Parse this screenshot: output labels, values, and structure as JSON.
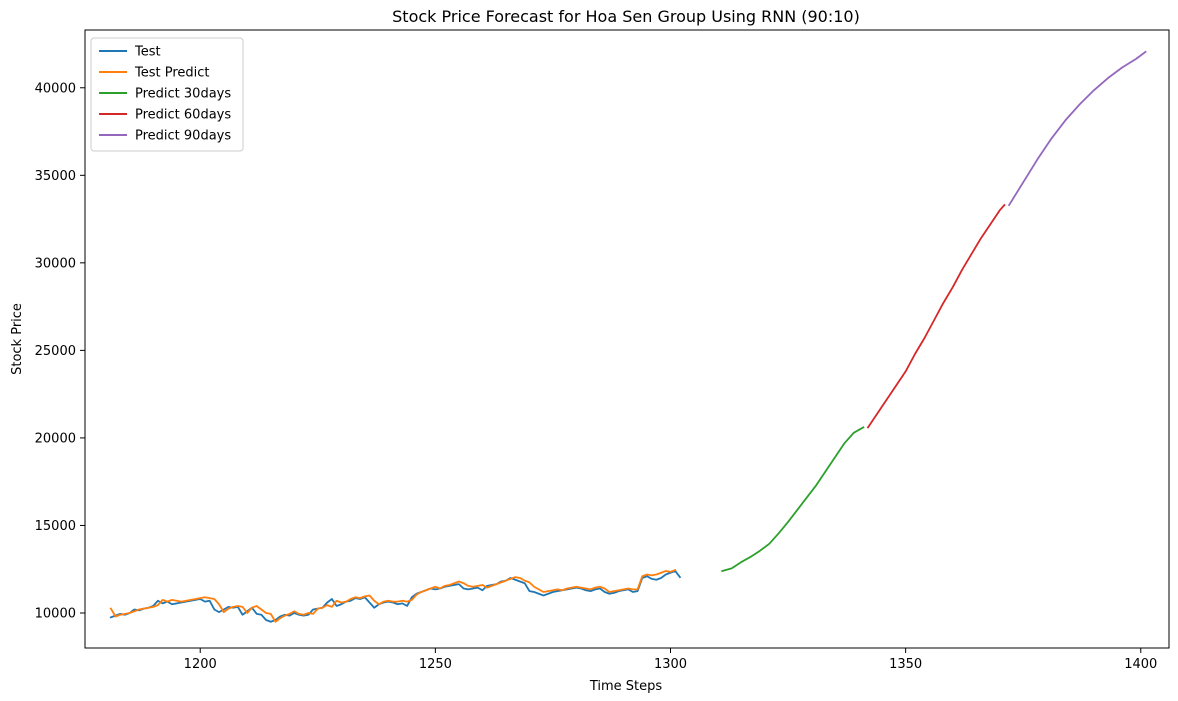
{
  "chart_data": {
    "type": "line",
    "title": "Stock Price Forecast for Hoa Sen Group Using RNN (90:10)",
    "xlabel": "Time Steps",
    "ylabel": "Stock Price",
    "xlim": [
      1175.5,
      1406
    ],
    "ylim": [
      8000,
      43300
    ],
    "xticks": [
      1200,
      1250,
      1300,
      1350,
      1400
    ],
    "yticks": [
      10000,
      15000,
      20000,
      25000,
      30000,
      35000,
      40000
    ],
    "legend_position": "top-left",
    "grid": false,
    "series": [
      {
        "name": "Test",
        "color": "#1f77b4",
        "x_start": 1181,
        "values": [
          9750,
          9850,
          9950,
          9900,
          10000,
          10200,
          10150,
          10250,
          10300,
          10400,
          10700,
          10550,
          10650,
          10500,
          10550,
          10600,
          10650,
          10700,
          10750,
          10800,
          10650,
          10700,
          10200,
          10050,
          10200,
          10350,
          10300,
          10350,
          9900,
          10100,
          10300,
          9950,
          9900,
          9600,
          9500,
          9600,
          9800,
          9900,
          9850,
          10000,
          9900,
          9850,
          9900,
          10200,
          10250,
          10300,
          10600,
          10800,
          10400,
          10500,
          10650,
          10700,
          10850,
          10800,
          10900,
          10600,
          10300,
          10500,
          10600,
          10650,
          10600,
          10500,
          10550,
          10400,
          10900,
          11100,
          11200,
          11300,
          11400,
          11350,
          11400,
          11500,
          11550,
          11600,
          11650,
          11400,
          11350,
          11400,
          11450,
          11300,
          11550,
          11600,
          11650,
          11800,
          11850,
          12000,
          11900,
          11800,
          11700,
          11250,
          11200,
          11100,
          11000,
          11100,
          11200,
          11250,
          11300,
          11350,
          11400,
          11450,
          11400,
          11300,
          11250,
          11350,
          11400,
          11200,
          11100,
          11150,
          11250,
          11300,
          11350,
          11200,
          11250,
          12000,
          12100,
          11950,
          11900,
          12000,
          12200,
          12300,
          12400,
          12050
        ],
        "note_end_x": 1312
      },
      {
        "name": "Test Predict",
        "color": "#ff7f0e",
        "x_start": 1181,
        "values": [
          10250,
          9800,
          9900,
          9950,
          10000,
          10100,
          10200,
          10250,
          10300,
          10350,
          10450,
          10750,
          10650,
          10750,
          10700,
          10650,
          10700,
          10750,
          10800,
          10850,
          10900,
          10850,
          10800,
          10500,
          10050,
          10250,
          10350,
          10400,
          10350,
          10000,
          10300,
          10400,
          10200,
          10000,
          9950,
          9500,
          9700,
          9850,
          9950,
          10100,
          9950,
          9900,
          10000,
          9950,
          10250,
          10300,
          10450,
          10350,
          10700,
          10600,
          10650,
          10800,
          10900,
          10850,
          10950,
          11000,
          10700,
          10500,
          10650,
          10700,
          10650,
          10650,
          10700,
          10650,
          10750,
          11050,
          11200,
          11300,
          11400,
          11500,
          11400,
          11550,
          11600,
          11700,
          11800,
          11700,
          11550,
          11500,
          11550,
          11600,
          11450,
          11550,
          11650,
          11750,
          11850,
          11950,
          12050,
          12000,
          11850,
          11750,
          11500,
          11350,
          11200,
          11250,
          11300,
          11350,
          11300,
          11400,
          11450,
          11500,
          11450,
          11400,
          11350,
          11450,
          11500,
          11400,
          11200,
          11250,
          11300,
          11350,
          11400,
          11350,
          11350,
          12100,
          12200,
          12150,
          12200,
          12300,
          12400,
          12350,
          12450
        ],
        "note_end_x": 1311
      },
      {
        "name": "Predict 30days",
        "color": "#2ca02c",
        "points": [
          [
            1311,
            12400
          ],
          [
            1313,
            12550
          ],
          [
            1315,
            12900
          ],
          [
            1317,
            13200
          ],
          [
            1319,
            13550
          ],
          [
            1321,
            13950
          ],
          [
            1323,
            14550
          ],
          [
            1325,
            15200
          ],
          [
            1327,
            15900
          ],
          [
            1329,
            16600
          ],
          [
            1331,
            17300
          ],
          [
            1333,
            18100
          ],
          [
            1335,
            18900
          ],
          [
            1337,
            19700
          ],
          [
            1339,
            20300
          ],
          [
            1341,
            20600
          ]
        ]
      },
      {
        "name": "Predict 60days",
        "color": "#d62728",
        "points": [
          [
            1342,
            20600
          ],
          [
            1344,
            21400
          ],
          [
            1346,
            22200
          ],
          [
            1348,
            23000
          ],
          [
            1350,
            23800
          ],
          [
            1352,
            24800
          ],
          [
            1354,
            25700
          ],
          [
            1356,
            26700
          ],
          [
            1358,
            27700
          ],
          [
            1360,
            28600
          ],
          [
            1362,
            29600
          ],
          [
            1364,
            30500
          ],
          [
            1366,
            31400
          ],
          [
            1368,
            32200
          ],
          [
            1370,
            33000
          ],
          [
            1371,
            33300
          ]
        ]
      },
      {
        "name": "Predict 90days",
        "color": "#9467bd",
        "points": [
          [
            1372,
            33300
          ],
          [
            1375,
            34600
          ],
          [
            1378,
            35900
          ],
          [
            1381,
            37100
          ],
          [
            1384,
            38150
          ],
          [
            1387,
            39050
          ],
          [
            1390,
            39850
          ],
          [
            1393,
            40550
          ],
          [
            1396,
            41150
          ],
          [
            1399,
            41650
          ],
          [
            1401,
            42050
          ]
        ]
      }
    ]
  }
}
